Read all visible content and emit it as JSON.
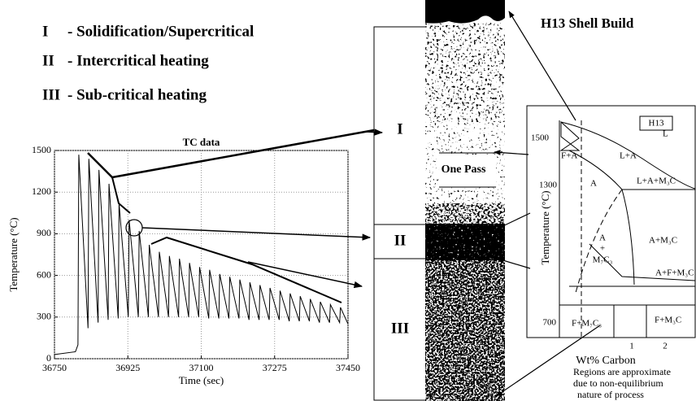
{
  "legend": [
    {
      "numeral": "I",
      "text": "- Solidification/Supercritical"
    },
    {
      "numeral": "II",
      "text": "- Intercritical  heating"
    },
    {
      "numeral": "III",
      "text": "- Sub-critical heating"
    }
  ],
  "chart_data": {
    "type": "line",
    "title": "TC data",
    "x_label": "Time (sec)",
    "y_label": "Temperature (°C)",
    "x": [
      36750,
      36800,
      36806,
      36808,
      36830,
      36832,
      36854,
      36856,
      36878,
      36880,
      36902,
      36904,
      36926,
      36928,
      36950,
      36952,
      36974,
      36976,
      36998,
      37000,
      37022,
      37024,
      37046,
      37048,
      37070,
      37072,
      37094,
      37096,
      37118,
      37120,
      37142,
      37144,
      37166,
      37168,
      37190,
      37192,
      37214,
      37216,
      37238,
      37240,
      37262,
      37264,
      37286,
      37288,
      37310,
      37312,
      37334,
      37336,
      37358,
      37360,
      37382,
      37384,
      37406,
      37408,
      37430,
      37432,
      37450
    ],
    "values": [
      30,
      50,
      100,
      1470,
      220,
      1440,
      260,
      1360,
      280,
      1260,
      290,
      1120,
      300,
      1000,
      300,
      920,
      300,
      820,
      300,
      770,
      300,
      740,
      300,
      720,
      300,
      690,
      300,
      660,
      290,
      640,
      290,
      610,
      290,
      590,
      290,
      570,
      280,
      550,
      280,
      530,
      280,
      510,
      280,
      490,
      270,
      470,
      270,
      450,
      270,
      430,
      260,
      410,
      260,
      390,
      260,
      370,
      250
    ],
    "color": "#000000",
    "xlim": [
      36750,
      37450
    ],
    "xticks": [
      36750,
      36925,
      37100,
      37275,
      37450
    ],
    "ylim": [
      0,
      1500
    ],
    "yticks": [
      0,
      300,
      600,
      900,
      1200,
      1500
    ],
    "grid": true
  },
  "micrograph": {
    "title": "H13 Shell Build",
    "zones": [
      "I",
      "II",
      "III"
    ],
    "pass_label": "One Pass"
  },
  "phase_diagram": {
    "label": "H13",
    "y_label": "Temperature (°C)",
    "x_label": "Wt% Carbon",
    "yticks": [
      "1500",
      "1300",
      "700"
    ],
    "xticks": [
      "1",
      "2"
    ],
    "regions": [
      "L",
      "L+A",
      "F+A",
      "A",
      "L+A+M₃C",
      "A",
      "+",
      "M₇C₃",
      "A+M₃C",
      "A+F+M₃C",
      "F+M₇C₃",
      "F+M₃C"
    ]
  },
  "note": [
    "Regions are approximate",
    "due to non-equilibrium",
    "nature of process"
  ]
}
